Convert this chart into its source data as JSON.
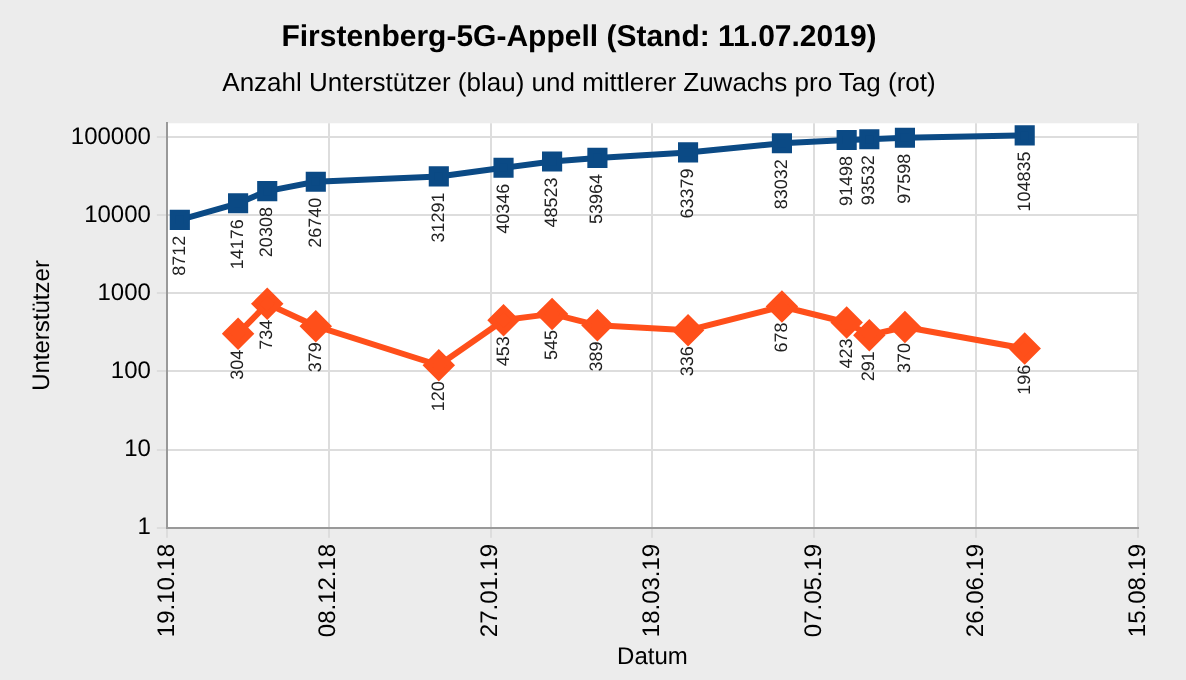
{
  "chart_data": {
    "type": "line",
    "title": "Firstenberg-5G-Appell (Stand: 11.07.2019)",
    "subtitle": "Anzahl Unterstützer (blau) und mittlerer Zuwachs pro Tag (rot)",
    "xlabel": "Datum",
    "ylabel": "Unterstützer",
    "log": "y",
    "grid": true,
    "legend": false,
    "data_labels": true,
    "xlim": [
      "2018-10-19",
      "2019-08-15"
    ],
    "xticks": [
      {
        "value": "2018-10-19",
        "label": "19.10.18"
      },
      {
        "value": "2018-12-08",
        "label": "08.12.18"
      },
      {
        "value": "2019-01-27",
        "label": "27.01.19"
      },
      {
        "value": "2019-03-18",
        "label": "18.03.19"
      },
      {
        "value": "2019-05-07",
        "label": "07.05.19"
      },
      {
        "value": "2019-06-26",
        "label": "26.06.19"
      },
      {
        "value": "2019-08-15",
        "label": "15.08.19"
      }
    ],
    "ylim": [
      1,
      150000
    ],
    "yticks": [
      1,
      10,
      100,
      1000,
      10000,
      100000
    ],
    "series": [
      {
        "color": "#0b4a85",
        "marker": "square",
        "x": [
          "2018-10-23",
          "2018-11-10",
          "2018-11-19",
          "2018-12-04",
          "2019-01-11",
          "2019-01-31",
          "2019-02-15",
          "2019-03-01",
          "2019-03-29",
          "2019-04-27",
          "2019-05-17",
          "2019-05-24",
          "2019-06-04",
          "2019-07-11"
        ],
        "values": [
          8712,
          14176,
          20308,
          26740,
          31291,
          40346,
          48523,
          53964,
          63379,
          83032,
          91498,
          93532,
          97598,
          104835
        ]
      },
      {
        "color": "#ff4f1a",
        "marker": "diamond",
        "x": [
          "2018-11-10",
          "2018-11-19",
          "2018-12-04",
          "2019-01-11",
          "2019-01-31",
          "2019-02-15",
          "2019-03-01",
          "2019-03-29",
          "2019-04-27",
          "2019-05-17",
          "2019-05-24",
          "2019-06-04",
          "2019-07-11"
        ],
        "values": [
          304,
          734,
          379,
          120,
          453,
          545,
          389,
          336,
          678,
          423,
          291,
          370,
          196
        ]
      }
    ]
  }
}
